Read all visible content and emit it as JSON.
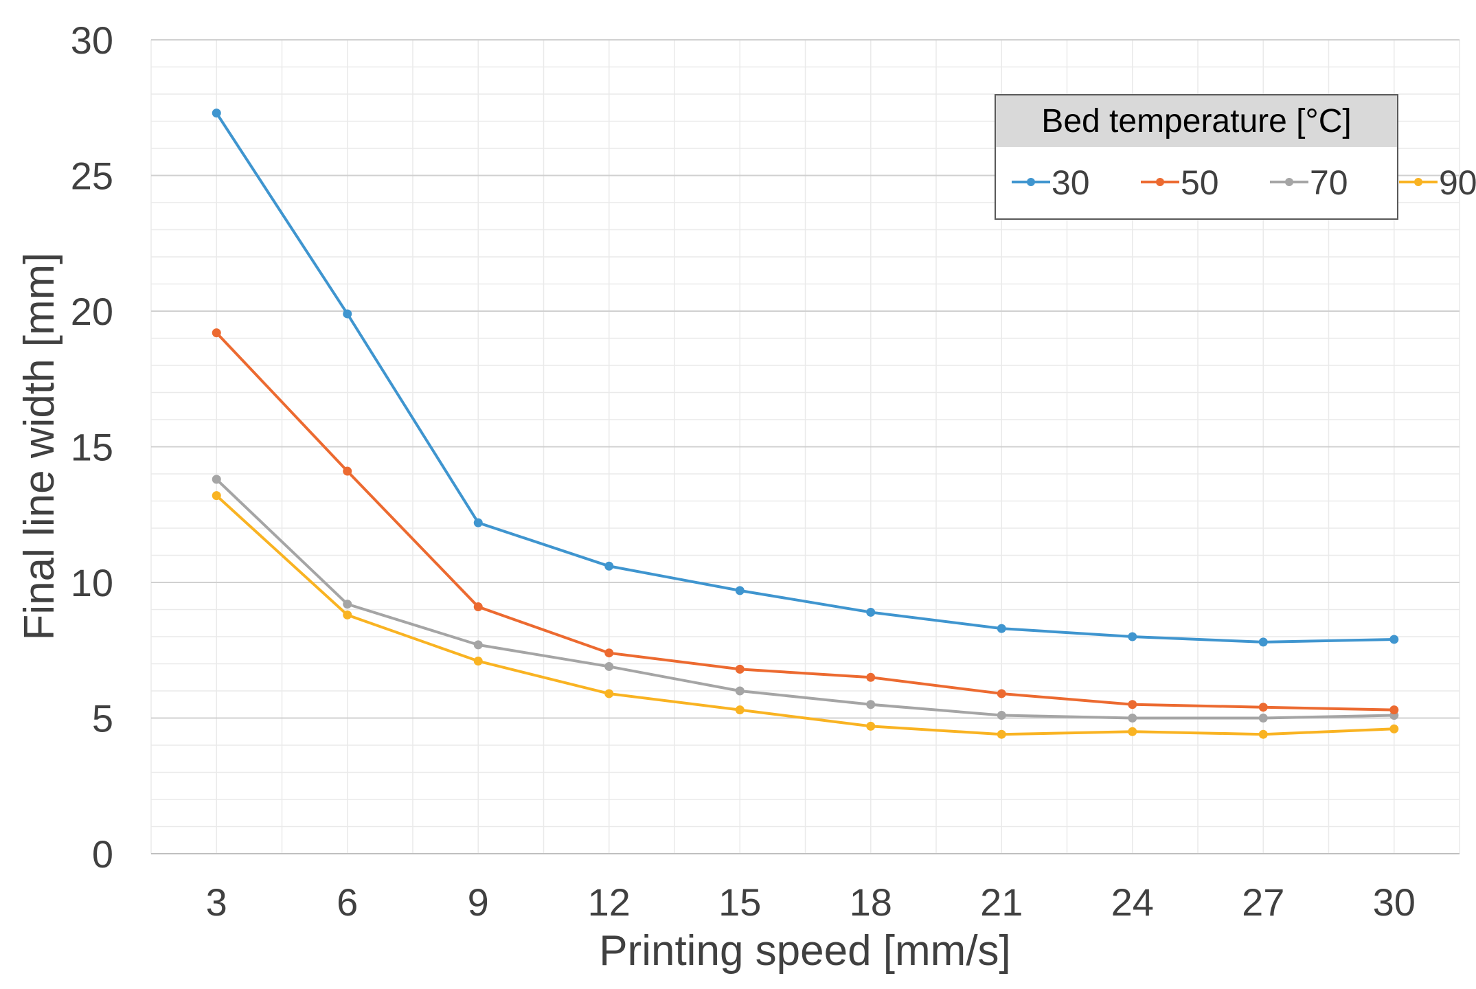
{
  "chart_data": {
    "type": "line",
    "title": "",
    "xlabel": "Printing speed [mm/s]",
    "ylabel": "Final line width [mm]",
    "categories": [
      "3",
      "6",
      "9",
      "12",
      "15",
      "18",
      "21",
      "24",
      "27",
      "30"
    ],
    "ylim": [
      0,
      30
    ],
    "yticks": [
      "0",
      "5",
      "10",
      "15",
      "20",
      "25",
      "30"
    ],
    "grid": true,
    "legend": {
      "title": "Bed temperature [°C]",
      "position": "top-right"
    },
    "series": [
      {
        "name": "30",
        "color": "#3F95CF",
        "values": [
          27.3,
          19.9,
          12.2,
          10.6,
          9.7,
          8.9,
          8.3,
          8.0,
          7.8,
          7.9
        ]
      },
      {
        "name": "50",
        "color": "#EC6A30",
        "values": [
          19.2,
          14.1,
          9.1,
          7.4,
          6.8,
          6.5,
          5.9,
          5.5,
          5.4,
          5.3
        ]
      },
      {
        "name": "70",
        "color": "#A5A5A5",
        "values": [
          13.8,
          9.2,
          7.7,
          6.9,
          6.0,
          5.5,
          5.1,
          5.0,
          5.0,
          5.1
        ]
      },
      {
        "name": "90",
        "color": "#F9B322",
        "values": [
          13.2,
          8.8,
          7.1,
          5.9,
          5.3,
          4.7,
          4.4,
          4.5,
          4.4,
          4.6
        ]
      }
    ]
  }
}
